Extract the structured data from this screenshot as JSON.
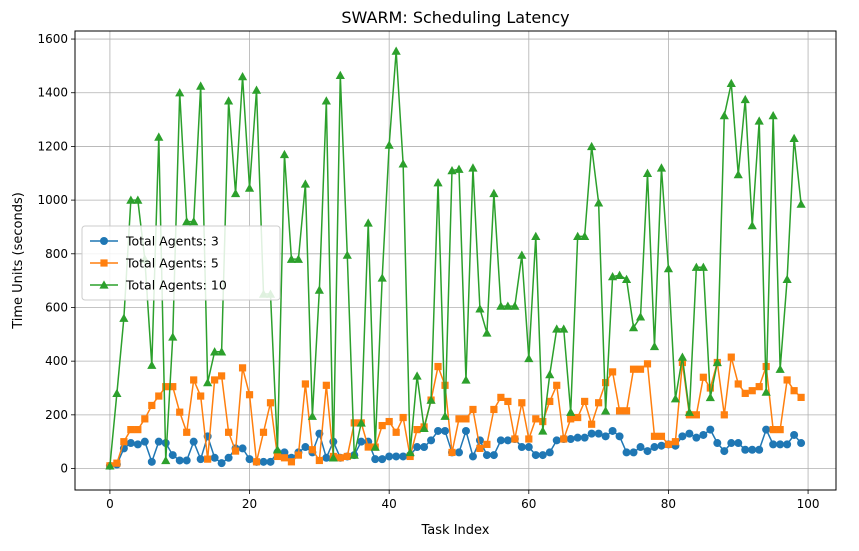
{
  "chart_data": {
    "type": "line",
    "title": "SWARM: Scheduling Latency",
    "xlabel": "Task Index",
    "ylabel": "Time Units (seconds)",
    "xlim": [
      -5,
      104
    ],
    "ylim": [
      -80,
      1630
    ],
    "x_ticks": [
      0,
      20,
      40,
      60,
      80,
      100
    ],
    "y_ticks": [
      0,
      200,
      400,
      600,
      800,
      1000,
      1200,
      1400,
      1600
    ],
    "grid": true,
    "legend_position": "center-left",
    "series": [
      {
        "name": "Total Agents: 3",
        "color": "#1f77b4",
        "marker": "circle",
        "values": [
          10,
          15,
          75,
          95,
          90,
          100,
          25,
          100,
          95,
          50,
          30,
          30,
          100,
          35,
          120,
          40,
          20,
          40,
          75,
          75,
          35,
          25,
          25,
          25,
          60,
          60,
          40,
          60,
          80,
          60,
          130,
          40,
          100,
          40,
          45,
          50,
          100,
          100,
          35,
          35,
          45,
          45,
          45,
          50,
          80,
          80,
          105,
          140,
          140,
          60,
          60,
          140,
          45,
          105,
          50,
          50,
          105,
          105,
          110,
          80,
          80,
          50,
          50,
          60,
          105,
          110,
          110,
          115,
          115,
          130,
          130,
          120,
          140,
          120,
          60,
          60,
          80,
          65,
          80,
          85,
          90,
          85,
          120,
          130,
          115,
          125,
          145,
          95,
          65,
          95,
          95,
          70,
          70,
          70,
          145,
          90,
          90,
          90,
          125,
          95
        ]
      },
      {
        "name": "Total Agents: 5",
        "color": "#ff7f0e",
        "marker": "square",
        "values": [
          10,
          20,
          100,
          145,
          145,
          185,
          235,
          270,
          305,
          305,
          210,
          135,
          330,
          270,
          35,
          330,
          345,
          135,
          65,
          375,
          275,
          25,
          135,
          245,
          45,
          40,
          25,
          50,
          315,
          70,
          30,
          310,
          45,
          40,
          45,
          170,
          170,
          80,
          80,
          160,
          175,
          135,
          190,
          45,
          145,
          155,
          255,
          380,
          310,
          60,
          185,
          185,
          220,
          75,
          90,
          220,
          265,
          250,
          110,
          245,
          110,
          185,
          175,
          250,
          310,
          110,
          185,
          190,
          250,
          165,
          245,
          320,
          360,
          215,
          215,
          370,
          370,
          390,
          120,
          120,
          90,
          100,
          395,
          200,
          200,
          340,
          300,
          395,
          200,
          415,
          315,
          280,
          290,
          305,
          380,
          145,
          145,
          330,
          290,
          265
        ]
      },
      {
        "name": "Total Agents: 10",
        "color": "#2ca02c",
        "marker": "triangle",
        "values": [
          10,
          280,
          560,
          1000,
          1000,
          780,
          385,
          1235,
          30,
          490,
          1400,
          920,
          920,
          1425,
          320,
          435,
          435,
          1370,
          1025,
          1460,
          1045,
          1410,
          650,
          650,
          70,
          1170,
          780,
          780,
          1060,
          195,
          665,
          1370,
          40,
          1465,
          795,
          50,
          170,
          915,
          80,
          710,
          1205,
          1555,
          1135,
          60,
          345,
          150,
          255,
          1065,
          195,
          1110,
          1115,
          330,
          1120,
          595,
          505,
          1025,
          605,
          605,
          605,
          795,
          410,
          865,
          140,
          350,
          520,
          520,
          210,
          865,
          865,
          1200,
          990,
          215,
          715,
          720,
          705,
          525,
          565,
          1100,
          455,
          1120,
          745,
          260,
          415,
          210,
          750,
          750,
          265,
          395,
          1315,
          1435,
          1095,
          1375,
          905,
          1295,
          285,
          1315,
          370,
          705,
          1230,
          985
        ]
      }
    ]
  }
}
